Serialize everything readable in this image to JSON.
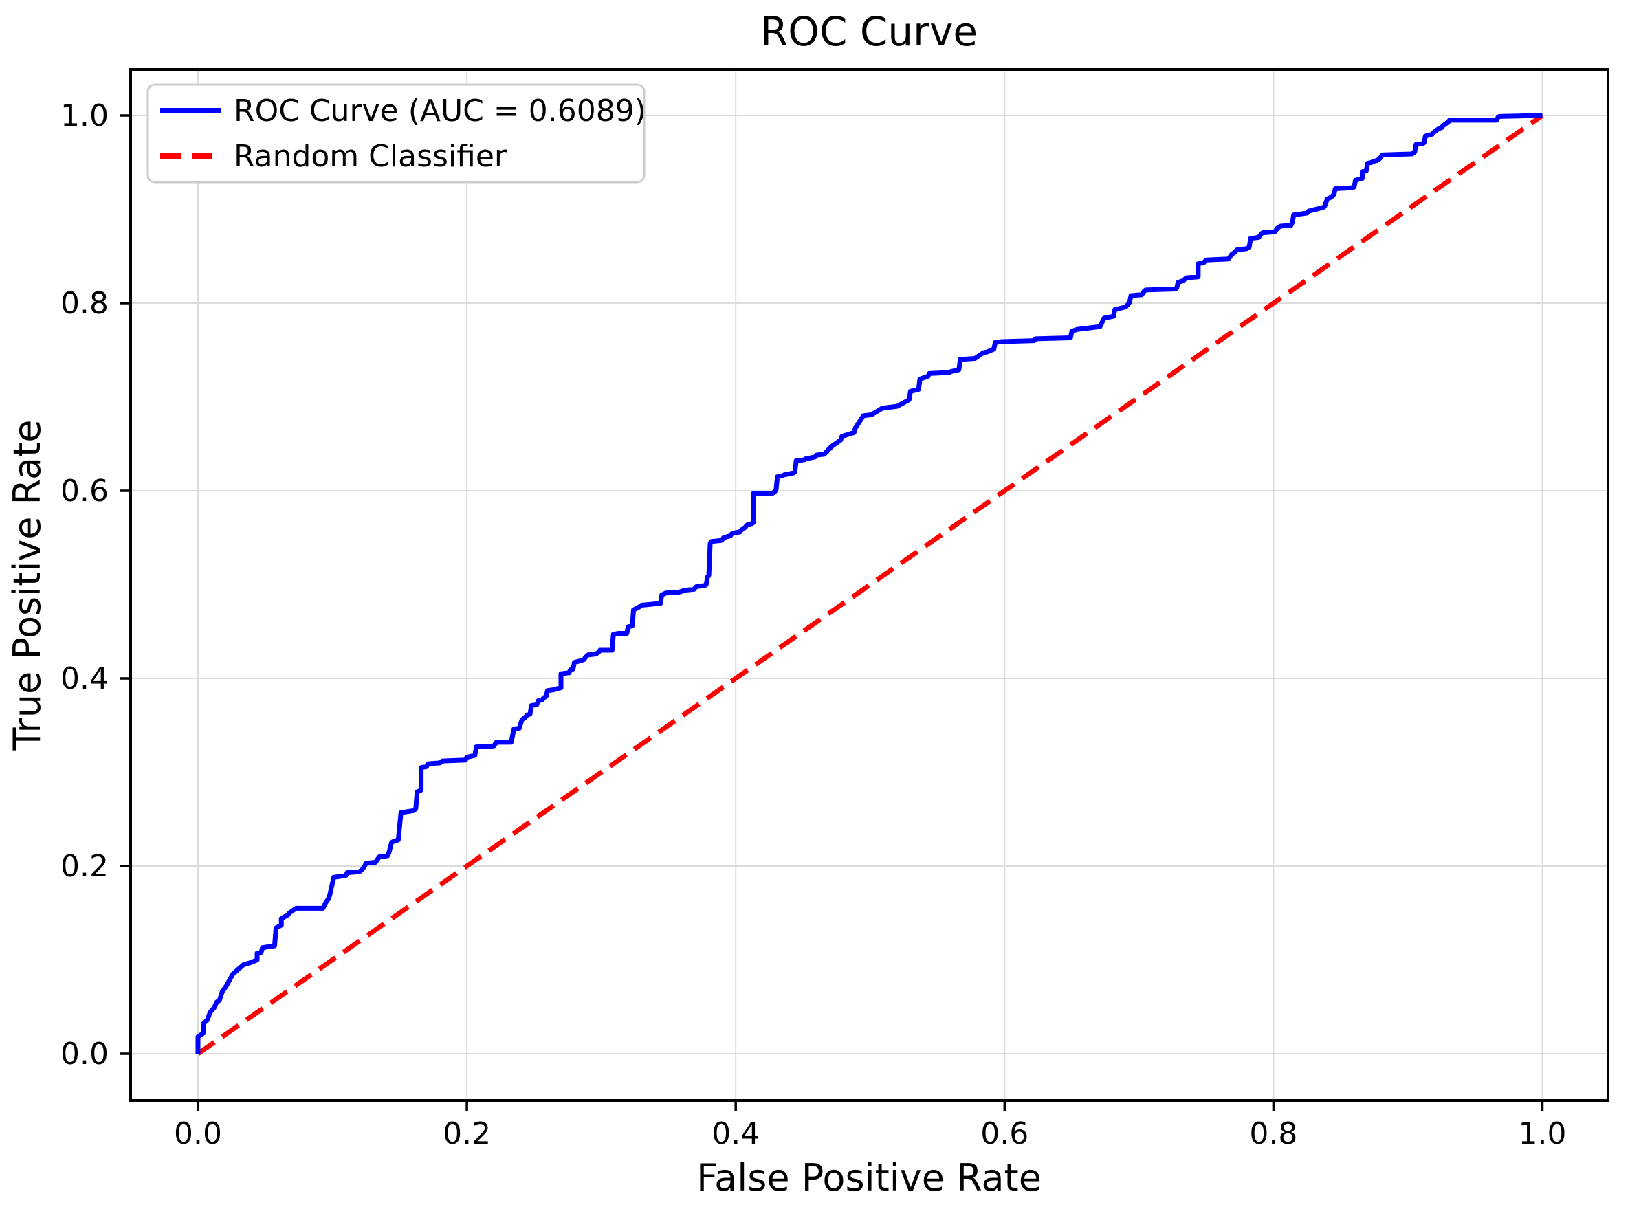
{
  "title": "ROC Curve",
  "axes": {
    "x": {
      "label": "False Positive Rate",
      "tick_labels": [
        "0.0",
        "0.2",
        "0.4",
        "0.6",
        "0.8",
        "1.0"
      ],
      "tick_values": [
        0.0,
        0.2,
        0.4,
        0.6,
        0.8,
        1.0
      ],
      "range": [
        -0.05,
        1.05
      ]
    },
    "y": {
      "label": "True Positive Rate",
      "tick_labels": [
        "0.0",
        "0.2",
        "0.4",
        "0.6",
        "0.8",
        "1.0"
      ],
      "tick_values": [
        0.0,
        0.2,
        0.4,
        0.6,
        0.8,
        1.0
      ],
      "range": [
        -0.05,
        1.05
      ]
    }
  },
  "legend": {
    "items": [
      {
        "label": "ROC Curve (AUC = 0.6089)",
        "color": "#0000ff",
        "style": "solid"
      },
      {
        "label": "Random Classifier",
        "color": "#ff0000",
        "style": "dashed"
      }
    ]
  },
  "colors": {
    "roc_curve": "#0000ff",
    "random_classifier": "#ff0000",
    "grid": "#dcdcdc",
    "spine": "#000000",
    "background": "#ffffff",
    "legend_border": "#cccccc"
  },
  "chart_data": {
    "type": "line",
    "title": "ROC Curve",
    "xlabel": "False Positive Rate",
    "ylabel": "True Positive Rate",
    "xlim": [
      -0.05,
      1.05
    ],
    "ylim": [
      -0.05,
      1.05
    ],
    "grid": true,
    "legend_position": "upper left",
    "series": [
      {
        "name": "ROC Curve (AUC = 0.6089)",
        "color": "#0000ff",
        "style": "solid",
        "auc": 0.6089,
        "points": [
          [
            0.0,
            0.0
          ],
          [
            0.0,
            0.018
          ],
          [
            0.004,
            0.022
          ],
          [
            0.004,
            0.032
          ],
          [
            0.007,
            0.036
          ],
          [
            0.009,
            0.044
          ],
          [
            0.012,
            0.049
          ],
          [
            0.014,
            0.055
          ],
          [
            0.016,
            0.057
          ],
          [
            0.018,
            0.066
          ],
          [
            0.021,
            0.072
          ],
          [
            0.026,
            0.085
          ],
          [
            0.03,
            0.09
          ],
          [
            0.034,
            0.095
          ],
          [
            0.039,
            0.097
          ],
          [
            0.044,
            0.1
          ],
          [
            0.044,
            0.107
          ],
          [
            0.047,
            0.108
          ],
          [
            0.048,
            0.113
          ],
          [
            0.057,
            0.115
          ],
          [
            0.058,
            0.134
          ],
          [
            0.062,
            0.137
          ],
          [
            0.062,
            0.144
          ],
          [
            0.067,
            0.148
          ],
          [
            0.068,
            0.15
          ],
          [
            0.072,
            0.154
          ],
          [
            0.073,
            0.155
          ],
          [
            0.093,
            0.155
          ],
          [
            0.095,
            0.161
          ],
          [
            0.097,
            0.165
          ],
          [
            0.098,
            0.169
          ],
          [
            0.101,
            0.188
          ],
          [
            0.11,
            0.19
          ],
          [
            0.111,
            0.193
          ],
          [
            0.12,
            0.194
          ],
          [
            0.122,
            0.196
          ],
          [
            0.124,
            0.2
          ],
          [
            0.125,
            0.203
          ],
          [
            0.132,
            0.204
          ],
          [
            0.134,
            0.208
          ],
          [
            0.135,
            0.21
          ],
          [
            0.141,
            0.211
          ],
          [
            0.142,
            0.214
          ],
          [
            0.144,
            0.225
          ],
          [
            0.145,
            0.226
          ],
          [
            0.149,
            0.228
          ],
          [
            0.151,
            0.257
          ],
          [
            0.16,
            0.259
          ],
          [
            0.162,
            0.261
          ],
          [
            0.163,
            0.279
          ],
          [
            0.166,
            0.281
          ],
          [
            0.166,
            0.305
          ],
          [
            0.17,
            0.306
          ],
          [
            0.171,
            0.309
          ],
          [
            0.18,
            0.31
          ],
          [
            0.182,
            0.312
          ],
          [
            0.199,
            0.313
          ],
          [
            0.2,
            0.316
          ],
          [
            0.203,
            0.317
          ],
          [
            0.206,
            0.318
          ],
          [
            0.207,
            0.327
          ],
          [
            0.22,
            0.328
          ],
          [
            0.222,
            0.332
          ],
          [
            0.233,
            0.332
          ],
          [
            0.235,
            0.346
          ],
          [
            0.239,
            0.347
          ],
          [
            0.241,
            0.356
          ],
          [
            0.243,
            0.358
          ],
          [
            0.245,
            0.361
          ],
          [
            0.247,
            0.362
          ],
          [
            0.248,
            0.371
          ],
          [
            0.252,
            0.372
          ],
          [
            0.253,
            0.376
          ],
          [
            0.256,
            0.377
          ],
          [
            0.257,
            0.379
          ],
          [
            0.259,
            0.381
          ],
          [
            0.26,
            0.387
          ],
          [
            0.265,
            0.388
          ],
          [
            0.267,
            0.389
          ],
          [
            0.27,
            0.39
          ],
          [
            0.27,
            0.405
          ],
          [
            0.276,
            0.406
          ],
          [
            0.277,
            0.409
          ],
          [
            0.279,
            0.41
          ],
          [
            0.28,
            0.417
          ],
          [
            0.285,
            0.419
          ],
          [
            0.287,
            0.42
          ],
          [
            0.288,
            0.422
          ],
          [
            0.29,
            0.425
          ],
          [
            0.296,
            0.426
          ],
          [
            0.298,
            0.428
          ],
          [
            0.299,
            0.43
          ],
          [
            0.308,
            0.43
          ],
          [
            0.309,
            0.447
          ],
          [
            0.313,
            0.448
          ],
          [
            0.319,
            0.448
          ],
          [
            0.32,
            0.455
          ],
          [
            0.323,
            0.456
          ],
          [
            0.324,
            0.473
          ],
          [
            0.328,
            0.476
          ],
          [
            0.33,
            0.478
          ],
          [
            0.344,
            0.48
          ],
          [
            0.345,
            0.489
          ],
          [
            0.348,
            0.491
          ],
          [
            0.358,
            0.492
          ],
          [
            0.362,
            0.494
          ],
          [
            0.369,
            0.495
          ],
          [
            0.37,
            0.497
          ],
          [
            0.371,
            0.498
          ],
          [
            0.377,
            0.499
          ],
          [
            0.378,
            0.5
          ],
          [
            0.379,
            0.508
          ],
          [
            0.38,
            0.51
          ],
          [
            0.381,
            0.544
          ],
          [
            0.382,
            0.546
          ],
          [
            0.389,
            0.547
          ],
          [
            0.39,
            0.548
          ],
          [
            0.391,
            0.55
          ],
          [
            0.396,
            0.552
          ],
          [
            0.397,
            0.554
          ],
          [
            0.398,
            0.555
          ],
          [
            0.403,
            0.556
          ],
          [
            0.404,
            0.558
          ],
          [
            0.405,
            0.559
          ],
          [
            0.407,
            0.561
          ],
          [
            0.408,
            0.563
          ],
          [
            0.409,
            0.564
          ],
          [
            0.412,
            0.565
          ],
          [
            0.413,
            0.566
          ],
          [
            0.413,
            0.597
          ],
          [
            0.427,
            0.597
          ],
          [
            0.428,
            0.598
          ],
          [
            0.429,
            0.599
          ],
          [
            0.43,
            0.601
          ],
          [
            0.431,
            0.615
          ],
          [
            0.435,
            0.616
          ],
          [
            0.436,
            0.617
          ],
          [
            0.443,
            0.619
          ],
          [
            0.444,
            0.62
          ],
          [
            0.445,
            0.632
          ],
          [
            0.451,
            0.633
          ],
          [
            0.452,
            0.634
          ],
          [
            0.459,
            0.636
          ],
          [
            0.46,
            0.638
          ],
          [
            0.466,
            0.639
          ],
          [
            0.467,
            0.641
          ],
          [
            0.468,
            0.642
          ],
          [
            0.469,
            0.644
          ],
          [
            0.47,
            0.645
          ],
          [
            0.471,
            0.647
          ],
          [
            0.478,
            0.654
          ],
          [
            0.479,
            0.658
          ],
          [
            0.488,
            0.662
          ],
          [
            0.489,
            0.667
          ],
          [
            0.495,
            0.68
          ],
          [
            0.501,
            0.681
          ],
          [
            0.509,
            0.688
          ],
          [
            0.52,
            0.69
          ],
          [
            0.529,
            0.697
          ],
          [
            0.53,
            0.706
          ],
          [
            0.536,
            0.708
          ],
          [
            0.537,
            0.719
          ],
          [
            0.543,
            0.722
          ],
          [
            0.544,
            0.725
          ],
          [
            0.559,
            0.726
          ],
          [
            0.56,
            0.727
          ],
          [
            0.566,
            0.729
          ],
          [
            0.567,
            0.74
          ],
          [
            0.578,
            0.741
          ],
          [
            0.579,
            0.742
          ],
          [
            0.584,
            0.747
          ],
          [
            0.587,
            0.748
          ],
          [
            0.592,
            0.751
          ],
          [
            0.593,
            0.758
          ],
          [
            0.598,
            0.759
          ],
          [
            0.622,
            0.76
          ],
          [
            0.623,
            0.762
          ],
          [
            0.649,
            0.763
          ],
          [
            0.65,
            0.77
          ],
          [
            0.654,
            0.772
          ],
          [
            0.66,
            0.773
          ],
          [
            0.671,
            0.775
          ],
          [
            0.674,
            0.784
          ],
          [
            0.681,
            0.786
          ],
          [
            0.682,
            0.793
          ],
          [
            0.69,
            0.796
          ],
          [
            0.692,
            0.799
          ],
          [
            0.693,
            0.801
          ],
          [
            0.694,
            0.808
          ],
          [
            0.702,
            0.809
          ],
          [
            0.704,
            0.813
          ],
          [
            0.705,
            0.814
          ],
          [
            0.727,
            0.815
          ],
          [
            0.728,
            0.816
          ],
          [
            0.729,
            0.822
          ],
          [
            0.733,
            0.824
          ],
          [
            0.735,
            0.827
          ],
          [
            0.744,
            0.828
          ],
          [
            0.744,
            0.842
          ],
          [
            0.748,
            0.843
          ],
          [
            0.75,
            0.846
          ],
          [
            0.766,
            0.847
          ],
          [
            0.767,
            0.848
          ],
          [
            0.769,
            0.852
          ],
          [
            0.771,
            0.854
          ],
          [
            0.773,
            0.857
          ],
          [
            0.78,
            0.858
          ],
          [
            0.782,
            0.86
          ],
          [
            0.783,
            0.869
          ],
          [
            0.789,
            0.87
          ],
          [
            0.791,
            0.874
          ],
          [
            0.792,
            0.875
          ],
          [
            0.801,
            0.876
          ],
          [
            0.803,
            0.88
          ],
          [
            0.805,
            0.882
          ],
          [
            0.813,
            0.883
          ],
          [
            0.814,
            0.886
          ],
          [
            0.815,
            0.894
          ],
          [
            0.825,
            0.896
          ],
          [
            0.826,
            0.898
          ],
          [
            0.837,
            0.902
          ],
          [
            0.838,
            0.903
          ],
          [
            0.84,
            0.911
          ],
          [
            0.843,
            0.913
          ],
          [
            0.845,
            0.916
          ],
          [
            0.846,
            0.922
          ],
          [
            0.859,
            0.923
          ],
          [
            0.86,
            0.924
          ],
          [
            0.861,
            0.931
          ],
          [
            0.866,
            0.933
          ],
          [
            0.866,
            0.94
          ],
          [
            0.869,
            0.941
          ],
          [
            0.87,
            0.949
          ],
          [
            0.873,
            0.95
          ],
          [
            0.874,
            0.951
          ],
          [
            0.877,
            0.952
          ],
          [
            0.878,
            0.953
          ],
          [
            0.879,
            0.954
          ],
          [
            0.881,
            0.958
          ],
          [
            0.903,
            0.959
          ],
          [
            0.904,
            0.96
          ],
          [
            0.905,
            0.961
          ],
          [
            0.906,
            0.969
          ],
          [
            0.911,
            0.97
          ],
          [
            0.912,
            0.971
          ],
          [
            0.913,
            0.978
          ],
          [
            0.918,
            0.98
          ],
          [
            0.92,
            0.983
          ],
          [
            0.921,
            0.984
          ],
          [
            0.923,
            0.986
          ],
          [
            0.925,
            0.987
          ],
          [
            0.926,
            0.989
          ],
          [
            0.928,
            0.991
          ],
          [
            0.929,
            0.992
          ],
          [
            0.93,
            0.993
          ],
          [
            0.931,
            0.995
          ],
          [
            0.966,
            0.995
          ],
          [
            0.967,
            0.998
          ],
          [
            0.968,
            0.999
          ],
          [
            0.999,
            1.0
          ],
          [
            1.0,
            1.0
          ]
        ]
      },
      {
        "name": "Random Classifier",
        "color": "#ff0000",
        "style": "dashed",
        "points": [
          [
            0.0,
            0.0
          ],
          [
            1.0,
            1.0
          ]
        ]
      }
    ]
  }
}
